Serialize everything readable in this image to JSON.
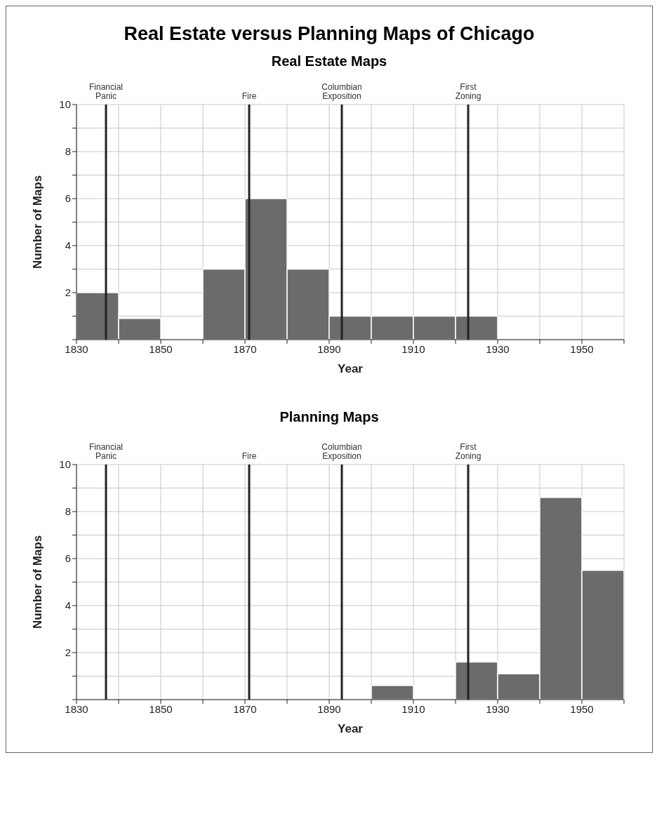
{
  "chart_data": [
    {
      "type": "histogram",
      "title": "Real Estate versus Planning Maps of Chicago",
      "subtitle": "Real Estate Maps",
      "xlabel": "Year",
      "ylabel": "Number of Maps",
      "bins": [
        1830,
        1840,
        1850,
        1860,
        1870,
        1880,
        1890,
        1900,
        1910,
        1920,
        1930,
        1940,
        1950,
        1960
      ],
      "values": [
        2,
        0.9,
        0,
        3,
        6,
        3,
        1,
        1,
        1,
        1,
        0,
        0,
        0
      ],
      "color": "#6b6b6b",
      "xlim": [
        1830,
        1960
      ],
      "xticks": [
        1830,
        {
          "value": 1840,
          "label": null
        },
        1850,
        {
          "value": 1860,
          "label": null
        },
        1870,
        {
          "value": 1880,
          "label": null
        },
        1890,
        {
          "value": 1900,
          "label": null
        },
        1910,
        {
          "value": 1920,
          "label": null
        },
        1930,
        {
          "value": 1940,
          "label": null
        },
        1950,
        {
          "value": 1960,
          "label": null
        }
      ],
      "ylim": [
        0,
        10
      ],
      "yticks": [
        {
          "value": 0,
          "label": null
        },
        {
          "value": 1,
          "label": null
        },
        2,
        {
          "value": 3,
          "label": null
        },
        4,
        {
          "value": 5,
          "label": null
        },
        6,
        {
          "value": 7,
          "label": null
        },
        8,
        {
          "value": 9,
          "label": null
        },
        10
      ],
      "grid": true,
      "ref_lines": [
        {
          "axis": "x",
          "value": 1837,
          "label": "Financial Panic",
          "color": "#222222"
        },
        {
          "axis": "x",
          "value": 1871,
          "label": "Fire",
          "color": "#222222"
        },
        {
          "axis": "x",
          "value": 1893,
          "label": "Columbian Exposition",
          "color": "#222222"
        },
        {
          "axis": "x",
          "value": 1923,
          "label": "First Zoning",
          "color": "#222222"
        }
      ]
    },
    {
      "type": "histogram",
      "title": "Planning Maps",
      "xlabel": "Year",
      "ylabel": "Number of Maps",
      "bins": [
        1830,
        1840,
        1850,
        1860,
        1870,
        1880,
        1890,
        1900,
        1910,
        1920,
        1930,
        1940,
        1950,
        1960
      ],
      "values": [
        0,
        0,
        0,
        0,
        0,
        0,
        0,
        0.6,
        0,
        1.6,
        1.1,
        8.6,
        5.5
      ],
      "color": "#6b6b6b",
      "xlim": [
        1830,
        1960
      ],
      "xticks": [
        1830,
        {
          "value": 1840,
          "label": null
        },
        1850,
        {
          "value": 1860,
          "label": null
        },
        1870,
        {
          "value": 1880,
          "label": null
        },
        1890,
        {
          "value": 1900,
          "label": null
        },
        1910,
        {
          "value": 1920,
          "label": null
        },
        1930,
        {
          "value": 1940,
          "label": null
        },
        1950,
        {
          "value": 1960,
          "label": null
        }
      ],
      "ylim": [
        0,
        10
      ],
      "yticks": [
        {
          "value": 0,
          "label": null
        },
        {
          "value": 1,
          "label": null
        },
        2,
        {
          "value": 3,
          "label": null
        },
        4,
        {
          "value": 5,
          "label": null
        },
        6,
        {
          "value": 7,
          "label": null
        },
        8,
        {
          "value": 9,
          "label": null
        },
        10
      ],
      "grid": true,
      "ref_lines": [
        {
          "axis": "x",
          "value": 1837,
          "label": "Financial Panic",
          "color": "#222222"
        },
        {
          "axis": "x",
          "value": 1871,
          "label": "Fire",
          "color": "#222222"
        },
        {
          "axis": "x",
          "value": 1893,
          "label": "Columbian Exposition",
          "color": "#222222"
        },
        {
          "axis": "x",
          "value": 1923,
          "label": "First Zoning",
          "color": "#222222"
        }
      ]
    }
  ]
}
